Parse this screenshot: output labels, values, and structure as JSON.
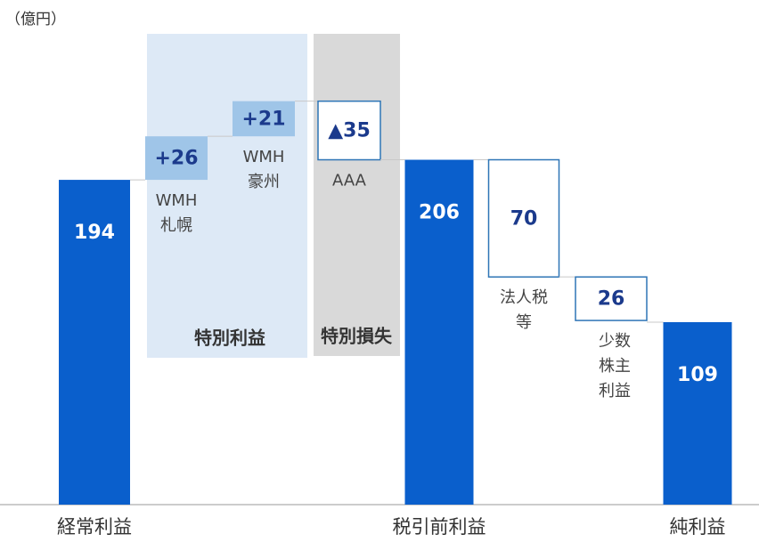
{
  "chart_data": {
    "type": "waterfall",
    "unit_label": "（億円）",
    "categories": [
      "経常利益",
      "WMH\n札幌",
      "WMH\n豪州",
      "AAA",
      "税引前利益",
      "法人税\n等",
      "少数\n株主\n利益",
      "純利益"
    ],
    "measure": [
      "total",
      "relative",
      "relative",
      "relative",
      "total",
      "relative",
      "relative",
      "total"
    ],
    "values": [
      194,
      26,
      21,
      -35,
      206,
      -70,
      -26,
      109
    ],
    "value_labels": [
      "194",
      "+26",
      "+21",
      "▲35",
      "206",
      "70",
      "26",
      "109"
    ],
    "colors": {
      "total": "#0a5fcc",
      "increase": "#9fc5e8",
      "decrease": "#ffffff"
    },
    "groups": [
      "特別利益",
      "特別損失"
    ]
  }
}
